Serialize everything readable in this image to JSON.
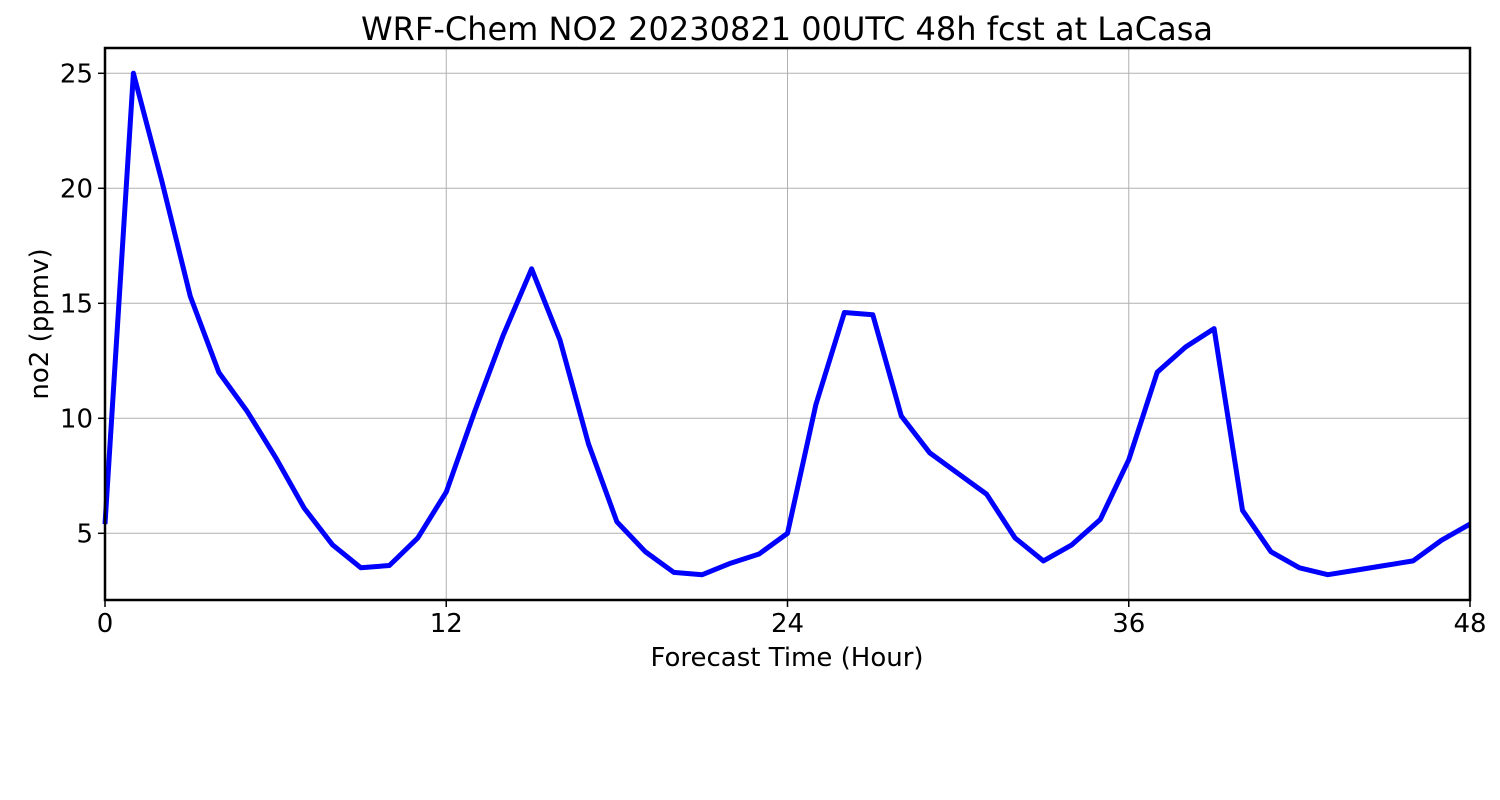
{
  "chart_data": {
    "type": "line",
    "title": "WRF-Chem NO2  20230821 00UTC 48h fcst at LaCasa",
    "xlabel": "Forecast Time (Hour)",
    "ylabel": "no2  (ppmv)",
    "xlim": [
      0,
      48
    ],
    "ylim": [
      2.1,
      26.1
    ],
    "xticks": [
      0,
      12,
      24,
      36,
      48
    ],
    "yticks": [
      5,
      10,
      15,
      20,
      25
    ],
    "grid": true,
    "legend": "none",
    "series": [
      {
        "color": "#0000ff",
        "x": [
          0,
          1,
          2,
          3,
          4,
          5,
          6,
          7,
          8,
          9,
          10,
          11,
          12,
          13,
          14,
          15,
          16,
          17,
          18,
          19,
          20,
          21,
          22,
          23,
          24,
          25,
          26,
          27,
          28,
          29,
          30,
          31,
          32,
          33,
          34,
          35,
          36,
          37,
          38,
          39,
          40,
          41,
          42,
          43,
          44,
          45,
          46,
          47,
          48
        ],
        "y": [
          5.4,
          25.0,
          20.3,
          15.3,
          12.0,
          10.3,
          8.3,
          6.1,
          4.5,
          3.5,
          3.6,
          4.8,
          6.8,
          10.3,
          13.6,
          16.5,
          13.4,
          8.9,
          5.5,
          4.2,
          3.3,
          3.2,
          3.7,
          4.1,
          5.0,
          10.6,
          14.6,
          14.5,
          10.1,
          8.5,
          7.6,
          6.7,
          4.8,
          3.8,
          4.5,
          5.6,
          8.2,
          12.0,
          13.1,
          13.9,
          6.0,
          4.2,
          3.5,
          3.2,
          3.4,
          3.6,
          3.8,
          4.7,
          5.4
        ]
      }
    ]
  }
}
